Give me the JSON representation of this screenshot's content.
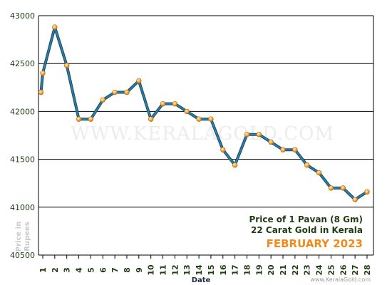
{
  "chart_data": {
    "type": "line",
    "title": "Price of 1 Pavan (8 Gm)",
    "subtitle": "22 Carat Gold in Kerala",
    "period": "FEBRUARY 2023",
    "xlabel": "Date",
    "ylabel": "Price in Rupees",
    "ylim": [
      40500,
      43000
    ],
    "yticks": [
      40500,
      41000,
      41500,
      42000,
      42500,
      43000
    ],
    "grid": true,
    "categories": [
      "1",
      "2",
      "3",
      "4",
      "5",
      "6",
      "7",
      "8",
      "9",
      "10",
      "11",
      "12",
      "13",
      "14",
      "15",
      "16",
      "17",
      "18",
      "19",
      "20",
      "21",
      "22",
      "23",
      "24",
      "25",
      "26",
      "27",
      "28"
    ],
    "series": [
      {
        "x": [
          0.85,
          1,
          2,
          3,
          4,
          5,
          6,
          7,
          8,
          9,
          10,
          11,
          12,
          13,
          14,
          15,
          16,
          17,
          18,
          19,
          20,
          21,
          22,
          23,
          24,
          25,
          26,
          27,
          28
        ],
        "values": [
          42200,
          42400,
          42880,
          42480,
          41920,
          41920,
          42120,
          42200,
          42200,
          42320,
          41920,
          42080,
          42080,
          42000,
          41920,
          41920,
          41600,
          41440,
          41760,
          41760,
          41680,
          41600,
          41600,
          41440,
          41360,
          41200,
          41200,
          41080,
          41160
        ]
      }
    ],
    "watermark": "WWW.KERALAGOLD.COM",
    "credit": "www.KeralaGold.com",
    "colors": {
      "line": "#2e7fa6",
      "marker": "#f0a848",
      "marker_edge": "#b86a10",
      "title_accent": "#f08a1c",
      "text": "#1f3d13"
    }
  }
}
